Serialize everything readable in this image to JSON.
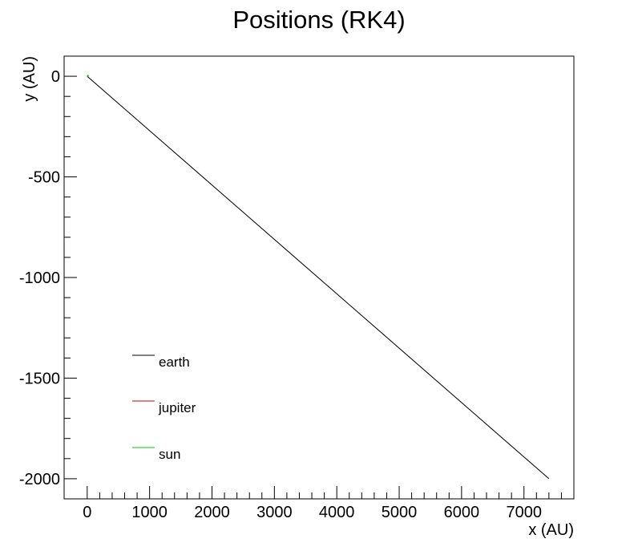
{
  "chart_data": {
    "type": "line",
    "title": "Positions (RK4)",
    "xlabel": "x (AU)",
    "ylabel": "y (AU)",
    "xlim": [
      -370,
      7800
    ],
    "ylim": [
      -2100,
      100
    ],
    "x_ticks": [
      0,
      1000,
      2000,
      3000,
      4000,
      5000,
      6000,
      7000
    ],
    "x_tick_labels": [
      "0",
      "1000",
      "2000",
      "3000",
      "4000",
      "5000",
      "6000",
      "7000"
    ],
    "y_ticks": [
      0,
      -500,
      -1000,
      -1500,
      -2000
    ],
    "y_tick_labels": [
      "0",
      "-500",
      "-1000",
      "-1500",
      "-2000"
    ],
    "grid": false,
    "legend_position": "lower-left",
    "series": [
      {
        "name": "earth",
        "color": "#000000",
        "x": [
          0,
          7400
        ],
        "y": [
          0,
          -2000
        ]
      },
      {
        "name": "jupiter",
        "color": "#cc0000",
        "x": [
          0,
          0
        ],
        "y": [
          0,
          0
        ]
      },
      {
        "name": "sun",
        "color": "#00cc00",
        "x": [
          0,
          20
        ],
        "y": [
          0,
          5
        ]
      }
    ]
  }
}
